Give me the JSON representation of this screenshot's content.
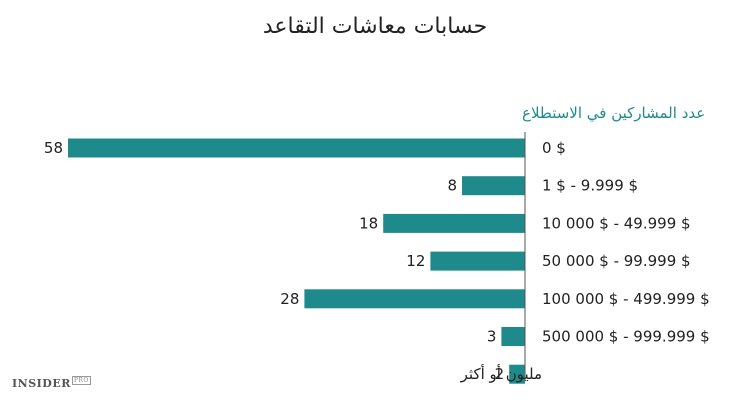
{
  "chart_data": {
    "type": "bar",
    "orientation": "horizontal",
    "title": "حسابات معاشات التقاعد",
    "ylabel": "عدد المشاركين في الاستطلاع",
    "categories": [
      "0 $",
      "1 $ - 9.999 $",
      "10 000 $ - 49.999 $",
      "50 000 $ - 99.999 $",
      "100 000 $ - 499.999 $",
      "500 000 $ - 999.999 $",
      "مليون أو أكثر"
    ],
    "values": [
      58,
      8,
      18,
      12,
      28,
      3,
      2
    ],
    "xlim": [
      0,
      58
    ],
    "bar_color": "#1f8a8c",
    "grid": false
  },
  "brand": {
    "name": "INSIDER",
    "sub": "PRO"
  }
}
